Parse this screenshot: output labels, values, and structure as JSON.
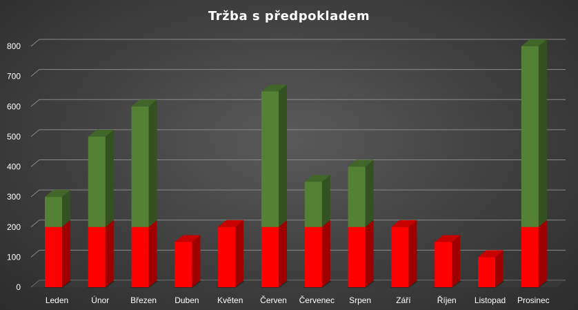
{
  "chart_data": {
    "type": "bar",
    "stacked": true,
    "three_d": true,
    "title": "Tržba s předpokladem",
    "xlabel": "",
    "ylabel": "",
    "ylim": [
      0,
      800
    ],
    "y_ticks": [
      "0",
      "100",
      "200",
      "300",
      "400",
      "500",
      "600",
      "700",
      "800"
    ],
    "grid": true,
    "legend": "none",
    "categories": [
      "Leden",
      "Únor",
      "Březen",
      "Duben",
      "Květen",
      "Červen",
      "Červenec",
      "Srpen",
      "Září",
      "Říjen",
      "Listopad",
      "Prosinec"
    ],
    "series": [
      {
        "color": "#ff0000",
        "values": [
          200,
          200,
          200,
          150,
          200,
          200,
          200,
          200,
          200,
          150,
          100,
          200
        ]
      },
      {
        "color": "#548235",
        "values": [
          100,
          300,
          400,
          0,
          0,
          450,
          150,
          200,
          0,
          0,
          0,
          600
        ]
      }
    ]
  }
}
